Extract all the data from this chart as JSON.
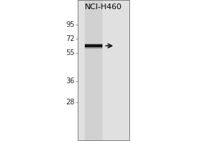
{
  "outer_background": "#ffffff",
  "lane_label": "NCI-H460",
  "mw_markers": [
    95,
    72,
    55,
    36,
    28
  ],
  "band_mw": 62,
  "panel_bg": "#e8e8e8",
  "lane_bg": "#d0d0d0",
  "band_color": "#111111",
  "arrow_color": "#111111",
  "label_color": "#222222",
  "fig_width": 3.0,
  "fig_height": 2.0,
  "dpi": 100
}
